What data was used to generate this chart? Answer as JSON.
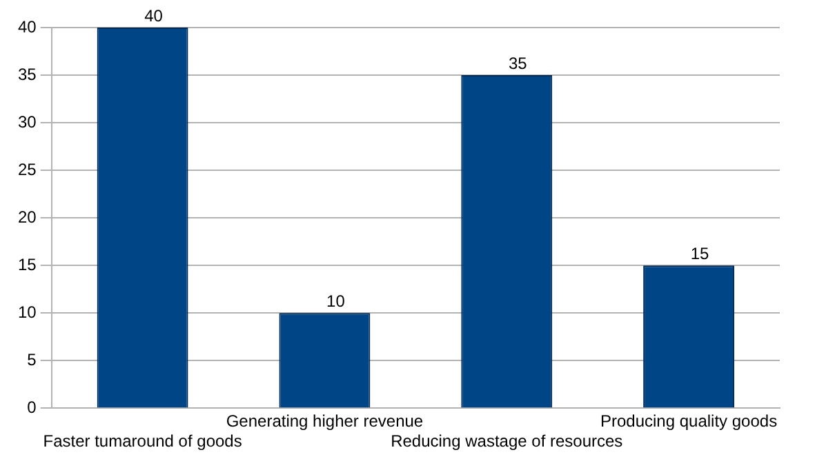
{
  "chart_data": {
    "type": "bar",
    "categories": [
      "Faster tumaround of goods",
      "Generating higher revenue",
      "Reducing wastage of resources",
      "Producing quality goods"
    ],
    "values": [
      40,
      10,
      35,
      15
    ],
    "color": "#004586",
    "ylim": [
      0,
      40
    ],
    "yticks": [
      0,
      5,
      10,
      15,
      20,
      25,
      30,
      35,
      40
    ],
    "grid": "y",
    "data_labels": true
  }
}
